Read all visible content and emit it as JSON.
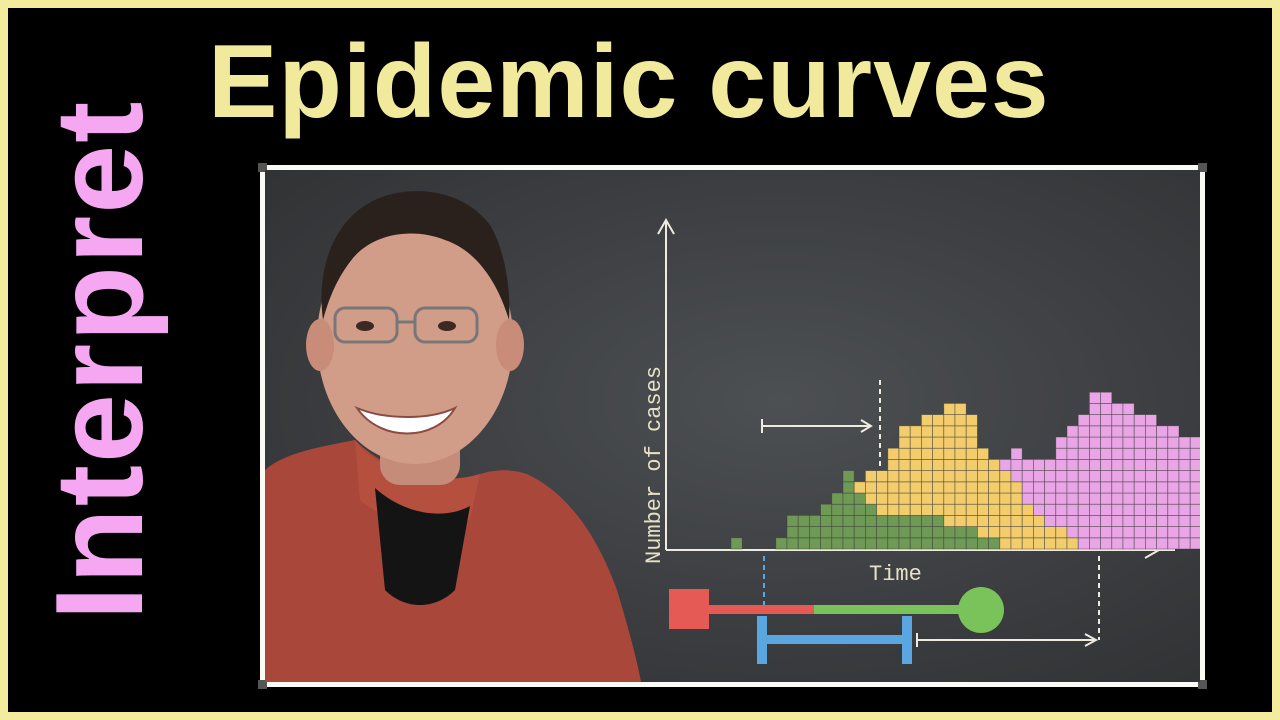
{
  "side_title": "Interpret",
  "main_title": "Epidemic curves",
  "colors": {
    "background": "#f3ec9c",
    "side_title": "#f6a7f2",
    "main_title": "#f1ea9c",
    "board": "#3e4043",
    "green": "#6f9a55",
    "yellow": "#f3cd6c",
    "pink": "#e9a5e6",
    "red": "#e65a55",
    "blue": "#5aa6e0",
    "chalk": "#eeeae0"
  },
  "chart_data": {
    "type": "bar",
    "stacked": true,
    "xlabel": "Time",
    "ylabel": "Number of cases",
    "grid": false,
    "series": [
      {
        "color": "green",
        "values": [
          1,
          0,
          0,
          0,
          1,
          3,
          3,
          3,
          4,
          5,
          7,
          5,
          4,
          3,
          3,
          3,
          3,
          3,
          3,
          2,
          2,
          2,
          1,
          1,
          0,
          0,
          0,
          0,
          0,
          0,
          0,
          0,
          0,
          0,
          0,
          0,
          0,
          0,
          0,
          0,
          0,
          0,
          0,
          0,
          0,
          0,
          0
        ]
      },
      {
        "color": "yellow",
        "values": [
          0,
          0,
          0,
          0,
          0,
          0,
          0,
          0,
          0,
          0,
          0,
          1,
          3,
          4,
          6,
          8,
          8,
          9,
          9,
          11,
          11,
          10,
          8,
          7,
          7,
          6,
          4,
          3,
          2,
          2,
          1,
          0,
          0,
          0,
          0,
          0,
          0,
          0,
          0,
          0,
          0,
          0,
          0,
          0,
          0,
          0,
          0
        ]
      },
      {
        "color": "pink",
        "values": [
          0,
          0,
          0,
          0,
          0,
          0,
          0,
          0,
          0,
          0,
          0,
          0,
          0,
          0,
          0,
          0,
          0,
          0,
          0,
          0,
          0,
          0,
          0,
          0,
          1,
          3,
          4,
          5,
          6,
          8,
          10,
          12,
          14,
          14,
          13,
          13,
          12,
          12,
          11,
          11,
          10,
          10,
          9,
          9,
          8,
          8,
          7
        ]
      }
    ]
  }
}
